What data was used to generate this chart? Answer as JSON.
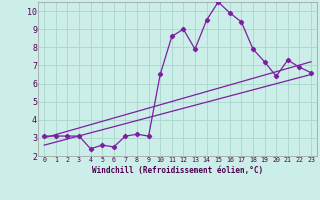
{
  "xlabel": "Windchill (Refroidissement éolien,°C)",
  "bg_color": "#cceee8",
  "grid_color": "#aad4cc",
  "line_color": "#7b1fa2",
  "xlim": [
    -0.5,
    23.5
  ],
  "ylim": [
    2,
    10.5
  ],
  "xticks": [
    0,
    1,
    2,
    3,
    4,
    5,
    6,
    7,
    8,
    9,
    10,
    11,
    12,
    13,
    14,
    15,
    16,
    17,
    18,
    19,
    20,
    21,
    22,
    23
  ],
  "yticks": [
    2,
    3,
    4,
    5,
    6,
    7,
    8,
    9,
    10
  ],
  "line1_x": [
    0,
    1,
    2,
    3,
    4,
    5,
    6,
    7,
    8,
    9,
    10,
    11,
    12,
    13,
    14,
    15,
    16,
    17,
    18,
    19,
    20,
    21,
    22,
    23
  ],
  "line1_y": [
    3.1,
    3.1,
    3.1,
    3.1,
    2.4,
    2.6,
    2.5,
    3.1,
    3.2,
    3.1,
    6.5,
    8.6,
    9.0,
    7.9,
    9.5,
    10.5,
    9.9,
    9.4,
    7.9,
    7.2,
    6.4,
    7.3,
    6.9,
    6.6
  ],
  "line2_x": [
    0,
    23
  ],
  "line2_y": [
    3.0,
    7.2
  ],
  "line3_x": [
    0,
    23
  ],
  "line3_y": [
    2.6,
    6.5
  ],
  "marker": "D",
  "markersize": 2.2,
  "linewidth": 0.9,
  "xlabel_fontsize": 5.5,
  "tick_fontsize_x": 4.8,
  "tick_fontsize_y": 6.0
}
